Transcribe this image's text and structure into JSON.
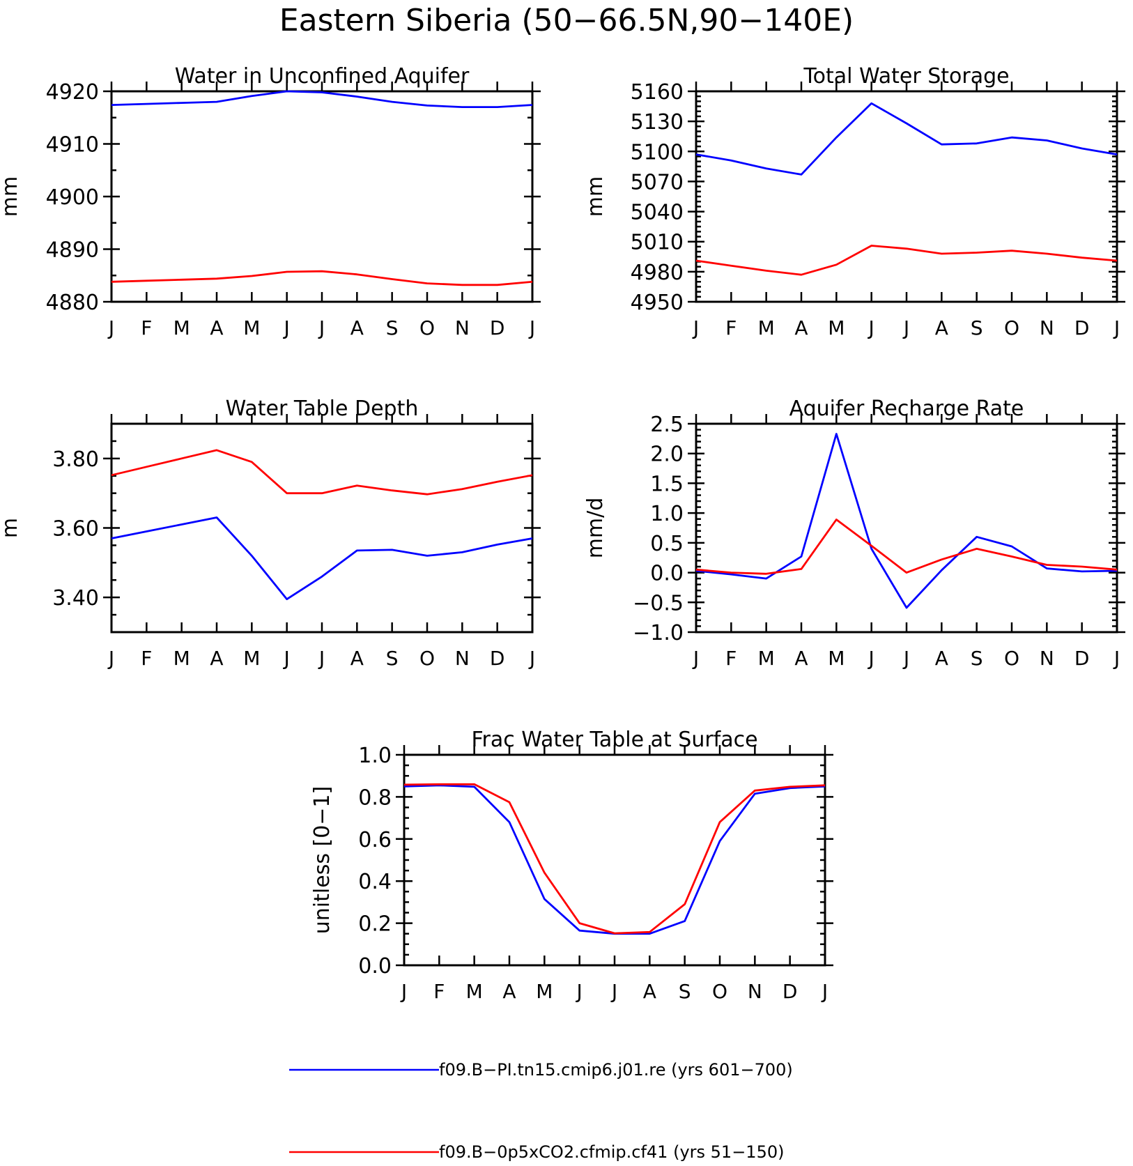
{
  "figure": {
    "title": "Eastern Siberia (50−66.5N,90−140E)"
  },
  "colors": {
    "series_1": "#0000ff",
    "series_2": "#ff0000"
  },
  "chart_data": [
    {
      "type": "line",
      "title": "Water in Unconfined Aquifer",
      "ylabel": "mm",
      "xlabel": "",
      "categories": [
        "J",
        "F",
        "M",
        "A",
        "M",
        "J",
        "J",
        "A",
        "S",
        "O",
        "N",
        "D",
        "J"
      ],
      "ylim": [
        4880,
        4920
      ],
      "yticks": [
        4880,
        4890,
        4900,
        4910,
        4920
      ],
      "yticklabels": [
        "4880",
        "4890",
        "4900",
        "4910",
        "4920"
      ],
      "yminor": 2,
      "series": [
        {
          "values": [
            4917.4,
            4917.6,
            4917.8,
            4918.0,
            4919.1,
            4920.0,
            4919.8,
            4919.0,
            4918.0,
            4917.3,
            4917.0,
            4917.0,
            4917.4
          ]
        },
        {
          "values": [
            4883.8,
            4884.0,
            4884.2,
            4884.4,
            4884.9,
            4885.7,
            4885.8,
            4885.2,
            4884.3,
            4883.5,
            4883.2,
            4883.2,
            4883.8
          ]
        }
      ]
    },
    {
      "type": "line",
      "title": "Total Water Storage",
      "ylabel": "mm",
      "xlabel": "",
      "categories": [
        "J",
        "F",
        "M",
        "A",
        "M",
        "J",
        "J",
        "A",
        "S",
        "O",
        "N",
        "D",
        "J"
      ],
      "ylim": [
        4950,
        5160
      ],
      "yticks": [
        4950,
        4980,
        5010,
        5040,
        5070,
        5100,
        5130,
        5160
      ],
      "yticklabels": [
        "4950",
        "4980",
        "5010",
        "5040",
        "5070",
        "5100",
        "5130",
        "5160"
      ],
      "yminor": 6,
      "series": [
        {
          "values": [
            5097,
            5091,
            5083,
            5077,
            5114,
            5148,
            5128,
            5107,
            5108,
            5114,
            5111,
            5103,
            5097
          ]
        },
        {
          "values": [
            4991,
            4986,
            4981,
            4977,
            4987,
            5006,
            5003,
            4998,
            4999,
            5001,
            4998,
            4994,
            4991
          ]
        }
      ]
    },
    {
      "type": "line",
      "title": "Water Table Depth",
      "ylabel": "m",
      "xlabel": "",
      "categories": [
        "J",
        "F",
        "M",
        "A",
        "M",
        "J",
        "J",
        "A",
        "S",
        "O",
        "N",
        "D",
        "J"
      ],
      "ylim": [
        3.3,
        3.9
      ],
      "yticks": [
        3.4,
        3.6,
        3.8
      ],
      "yticklabels": [
        "3.40",
        "3.60",
        "3.80"
      ],
      "yminor": 4,
      "series": [
        {
          "values": [
            3.57,
            3.59,
            3.61,
            3.63,
            3.52,
            3.395,
            3.46,
            3.535,
            3.537,
            3.52,
            3.53,
            3.552,
            3.57
          ]
        },
        {
          "values": [
            3.752,
            3.776,
            3.8,
            3.824,
            3.79,
            3.7,
            3.7,
            3.722,
            3.708,
            3.697,
            3.712,
            3.733,
            3.752
          ]
        }
      ]
    },
    {
      "type": "line",
      "title": "Aquifer Recharge Rate",
      "ylabel": "mm/d",
      "xlabel": "",
      "categories": [
        "J",
        "F",
        "M",
        "A",
        "M",
        "J",
        "J",
        "A",
        "S",
        "O",
        "N",
        "D",
        "J"
      ],
      "ylim": [
        -1.0,
        2.5
      ],
      "yticks": [
        -1.0,
        -0.5,
        0.0,
        0.5,
        1.0,
        1.5,
        2.0,
        2.5
      ],
      "yticklabels": [
        "−1.0",
        "−0.5",
        "0.0",
        "0.5",
        "1.0",
        "1.5",
        "2.0",
        "2.5"
      ],
      "yminor": 5,
      "series": [
        {
          "values": [
            0.03,
            -0.03,
            -0.1,
            0.27,
            2.33,
            0.4,
            -0.59,
            0.04,
            0.6,
            0.44,
            0.07,
            0.02,
            0.03
          ]
        },
        {
          "values": [
            0.05,
            0.0,
            -0.02,
            0.06,
            0.89,
            0.45,
            0.0,
            0.22,
            0.4,
            0.27,
            0.13,
            0.1,
            0.05
          ]
        }
      ]
    },
    {
      "type": "line",
      "title": "Frac Water Table at Surface",
      "ylabel": "unitless [0−1]",
      "xlabel": "",
      "categories": [
        "J",
        "F",
        "M",
        "A",
        "M",
        "J",
        "J",
        "A",
        "S",
        "O",
        "N",
        "D",
        "J"
      ],
      "ylim": [
        0.0,
        1.0
      ],
      "yticks": [
        0.0,
        0.2,
        0.4,
        0.6,
        0.8,
        1.0
      ],
      "yticklabels": [
        "0.0",
        "0.2",
        "0.4",
        "0.6",
        "0.8",
        "1.0"
      ],
      "yminor": 4,
      "series": [
        {
          "values": [
            0.85,
            0.855,
            0.848,
            0.68,
            0.315,
            0.165,
            0.15,
            0.15,
            0.21,
            0.59,
            0.815,
            0.842,
            0.85
          ]
        },
        {
          "values": [
            0.858,
            0.86,
            0.86,
            0.775,
            0.44,
            0.2,
            0.152,
            0.158,
            0.29,
            0.68,
            0.83,
            0.848,
            0.855
          ]
        }
      ]
    }
  ],
  "legend": [
    {
      "label": "f09.B−PI.tn15.cmip6.j01.re (yrs 601−700)"
    },
    {
      "label": "f09.B−0p5xCO2.cfmip.cf41 (yrs 51−150)"
    }
  ]
}
